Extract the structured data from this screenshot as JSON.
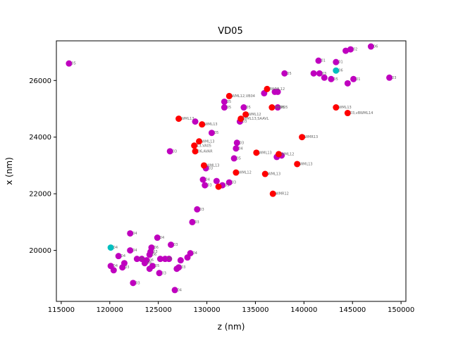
{
  "chart_data": {
    "type": "scatter",
    "title": "VD05",
    "xlabel": "z (nm)",
    "ylabel": "x (nm)",
    "xlim": [
      114500,
      150500
    ],
    "ylim": [
      18200,
      27400
    ],
    "xticks": [
      115000,
      120000,
      125000,
      130000,
      135000,
      140000,
      145000,
      150000
    ],
    "xtick_labels": [
      "115000",
      "120000",
      "125000",
      "130000",
      "135000",
      "140000",
      "145000",
      "150000"
    ],
    "yticks": [
      20000,
      22000,
      24000,
      26000
    ],
    "ytick_labels": [
      "20000",
      "22000",
      "24000",
      "26000"
    ],
    "grid": false,
    "colors": {
      "magenta": "#bf00bf",
      "red": "#ff0000",
      "cyan": "#00bfbf"
    },
    "series": [
      {
        "color": "magenta",
        "points": [
          {
            "x": 115800,
            "y": 26600,
            "label": "05"
          },
          {
            "x": 141500,
            "y": 26700,
            "label": "01"
          },
          {
            "x": 143300,
            "y": 26650,
            "label": "01"
          },
          {
            "x": 144300,
            "y": 27050,
            "label": ""
          },
          {
            "x": 144800,
            "y": 27100,
            "label": "02"
          },
          {
            "x": 146900,
            "y": 27200,
            "label": "06"
          },
          {
            "x": 141000,
            "y": 26250,
            "label": ""
          },
          {
            "x": 141600,
            "y": 26250,
            "label": "03"
          },
          {
            "x": 142100,
            "y": 26100,
            "label": ""
          },
          {
            "x": 142800,
            "y": 26050,
            "label": "05"
          },
          {
            "x": 144500,
            "y": 25900,
            "label": ""
          },
          {
            "x": 145100,
            "y": 26050,
            "label": "01"
          },
          {
            "x": 148800,
            "y": 26100,
            "label": "03"
          },
          {
            "x": 138000,
            "y": 26250,
            "label": "05"
          },
          {
            "x": 137000,
            "y": 25600,
            "label": ""
          },
          {
            "x": 137300,
            "y": 25600,
            "label": ""
          },
          {
            "x": 135900,
            "y": 25550,
            "label": ""
          },
          {
            "x": 131800,
            "y": 25250,
            "label": "05"
          },
          {
            "x": 131800,
            "y": 25050,
            "label": "05"
          },
          {
            "x": 133800,
            "y": 25050,
            "label": "05"
          },
          {
            "x": 137300,
            "y": 25050,
            "label": "05"
          },
          {
            "x": 128800,
            "y": 24550,
            "label": ""
          },
          {
            "x": 133400,
            "y": 24550,
            "label": "03"
          },
          {
            "x": 130500,
            "y": 24150,
            "label": "05"
          },
          {
            "x": 133100,
            "y": 23800,
            "label": "03"
          },
          {
            "x": 133000,
            "y": 23600,
            "label": "04"
          },
          {
            "x": 132800,
            "y": 23250,
            "label": "05"
          },
          {
            "x": 137200,
            "y": 23300,
            "label": ""
          },
          {
            "x": 137700,
            "y": 23350,
            "label": ""
          },
          {
            "x": 126200,
            "y": 23500,
            "label": "03"
          },
          {
            "x": 129900,
            "y": 22900,
            "label": "03"
          },
          {
            "x": 129600,
            "y": 22500,
            "label": "04"
          },
          {
            "x": 129800,
            "y": 22300,
            "label": "03"
          },
          {
            "x": 131000,
            "y": 22450,
            "label": ""
          },
          {
            "x": 131600,
            "y": 22300,
            "label": "03"
          },
          {
            "x": 132300,
            "y": 22400,
            "label": "03"
          },
          {
            "x": 129000,
            "y": 21450,
            "label": "03"
          },
          {
            "x": 128500,
            "y": 21000,
            "label": "03"
          },
          {
            "x": 122100,
            "y": 20600,
            "label": "04"
          },
          {
            "x": 124900,
            "y": 20450,
            "label": "04"
          },
          {
            "x": 126300,
            "y": 20200,
            "label": "03"
          },
          {
            "x": 124300,
            "y": 20100,
            "label": "06"
          },
          {
            "x": 122100,
            "y": 20000,
            "label": "04"
          },
          {
            "x": 124200,
            "y": 19950,
            "label": "03"
          },
          {
            "x": 124100,
            "y": 19850,
            "label": "06"
          },
          {
            "x": 120900,
            "y": 19800,
            "label": "04"
          },
          {
            "x": 122800,
            "y": 19700,
            "label": "01"
          },
          {
            "x": 123300,
            "y": 19700,
            "label": ""
          },
          {
            "x": 123800,
            "y": 19650,
            "label": "06"
          },
          {
            "x": 125200,
            "y": 19700,
            "label": ""
          },
          {
            "x": 125700,
            "y": 19700,
            "label": "05"
          },
          {
            "x": 126100,
            "y": 19700,
            "label": ""
          },
          {
            "x": 127300,
            "y": 19650,
            "label": ""
          },
          {
            "x": 128000,
            "y": 19750,
            "label": ""
          },
          {
            "x": 128300,
            "y": 19900,
            "label": "04"
          },
          {
            "x": 121500,
            "y": 19550,
            "label": ""
          },
          {
            "x": 123600,
            "y": 19550,
            "label": "04"
          },
          {
            "x": 124400,
            "y": 19450,
            "label": "05"
          },
          {
            "x": 127100,
            "y": 19400,
            "label": "03"
          },
          {
            "x": 120100,
            "y": 19450,
            "label": "04"
          },
          {
            "x": 121300,
            "y": 19400,
            "label": "03"
          },
          {
            "x": 124100,
            "y": 19350,
            "label": ""
          },
          {
            "x": 126900,
            "y": 19350,
            "label": ""
          },
          {
            "x": 120400,
            "y": 19300,
            "label": ""
          },
          {
            "x": 125100,
            "y": 19200,
            "label": "03"
          },
          {
            "x": 122400,
            "y": 18850,
            "label": "03"
          },
          {
            "x": 126700,
            "y": 18600,
            "label": "04"
          }
        ]
      },
      {
        "color": "red",
        "points": [
          {
            "x": 127100,
            "y": 24650,
            "label": "WML13"
          },
          {
            "x": 129500,
            "y": 24450,
            "label": "WML13"
          },
          {
            "x": 132300,
            "y": 25450,
            "label": "WML12,VB04"
          },
          {
            "x": 136200,
            "y": 25700,
            "label": "BWML12"
          },
          {
            "x": 134000,
            "y": 24800,
            "label": "WML12"
          },
          {
            "x": 133500,
            "y": 24650,
            "label": "WML13,SAAVL"
          },
          {
            "x": 136700,
            "y": 25050,
            "label": "WMR05"
          },
          {
            "x": 143300,
            "y": 25050,
            "label": "WML13"
          },
          {
            "x": 144500,
            "y": 24850,
            "label": "03,vBWML14"
          },
          {
            "x": 129200,
            "y": 23850,
            "label": "WML13"
          },
          {
            "x": 128700,
            "y": 23700,
            "label": "13,VA05"
          },
          {
            "x": 128800,
            "y": 23500,
            "label": "06,AVAR"
          },
          {
            "x": 135100,
            "y": 23450,
            "label": "WML13"
          },
          {
            "x": 139800,
            "y": 24000,
            "label": "WMR13"
          },
          {
            "x": 137400,
            "y": 23400,
            "label": "WML12"
          },
          {
            "x": 139300,
            "y": 23050,
            "label": "WML13"
          },
          {
            "x": 129700,
            "y": 23000,
            "label": "WML13"
          },
          {
            "x": 133000,
            "y": 22750,
            "label": "WML12"
          },
          {
            "x": 136000,
            "y": 22700,
            "label": "WML13"
          },
          {
            "x": 131200,
            "y": 22250,
            "label": ""
          },
          {
            "x": 136800,
            "y": 22000,
            "label": "WMR12"
          }
        ]
      },
      {
        "color": "cyan",
        "points": [
          {
            "x": 143300,
            "y": 26350,
            "label": "06"
          },
          {
            "x": 120100,
            "y": 20100,
            "label": "04"
          }
        ]
      }
    ]
  }
}
